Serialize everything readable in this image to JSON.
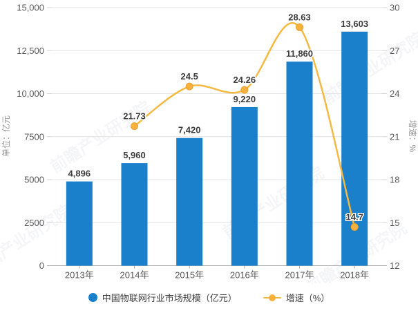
{
  "chart_data": {
    "type": "bar",
    "title": "",
    "categories": [
      "2013年",
      "2014年",
      "2015年",
      "2016年",
      "2017年",
      "2018年"
    ],
    "series": [
      {
        "name": "中国物联网行业市场规模（亿元）",
        "type": "bar",
        "axis": "left",
        "color": "#1A80CC",
        "values": [
          4896,
          5960,
          7420,
          9220,
          11860,
          13603
        ],
        "labels": [
          "4,896",
          "5,960",
          "7,420",
          "9,220",
          "11,860",
          "13,603"
        ]
      },
      {
        "name": "增速（%）",
        "type": "line",
        "axis": "right",
        "color": "#F5B942",
        "marker_color": "#F8B13D",
        "values": [
          null,
          21.73,
          24.5,
          24.26,
          28.63,
          14.7
        ],
        "labels": [
          "",
          "21.73",
          "24.5",
          "24.26",
          "28.63",
          "14.7"
        ]
      }
    ],
    "left_axis": {
      "title": "单位：亿元",
      "min": 0,
      "max": 15000,
      "tick_values": [
        0,
        2500,
        5000,
        7500,
        10000,
        12500,
        15000
      ],
      "tick_labels": [
        "0",
        "2500",
        "5000",
        "7500",
        "10,000",
        "12,500",
        "15,000"
      ]
    },
    "right_axis": {
      "title": "增速：%",
      "min": 12,
      "max": 30,
      "tick_values": [
        12,
        15,
        18,
        21,
        24,
        27,
        30
      ],
      "tick_labels": [
        "12",
        "15",
        "18",
        "21",
        "24",
        "27",
        "30"
      ]
    },
    "x_axis": {
      "tick_labels": [
        "2013年",
        "2014年",
        "2015年",
        "2016年",
        "2017年",
        "2018年"
      ]
    },
    "grid": true,
    "legend_position": "bottom"
  },
  "watermark": {
    "text": "前瞻产业研究院"
  },
  "colors": {
    "gridline": "#e4e4e4",
    "axis_line": "#aaaaaa",
    "tick": "#d4d4d4",
    "background": "#ffffff"
  }
}
